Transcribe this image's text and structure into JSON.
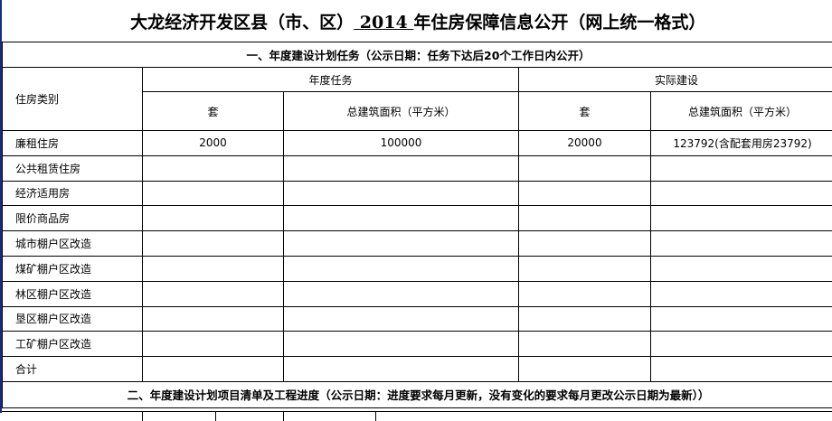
{
  "title": {
    "part1": "大龙经济开发区县（市、区）",
    "year": " 2014 ",
    "part2": "年住房保障信息公开（网上统一格式）"
  },
  "section1": "一、年度建设计划任务（公示日期：任务下达后20个工作日内公开）",
  "headers": {
    "category": "住房类别",
    "annual_task": "年度任务",
    "actual": "实际建设",
    "units": "套",
    "area": "总建筑面积（平方米）"
  },
  "rows": [
    {
      "category": "廉租住房",
      "task_units": "2000",
      "task_area": "100000",
      "actual_units": "20000",
      "actual_area": "123792(含配套用房23792)"
    },
    {
      "category": "公共租赁住房"
    },
    {
      "category": "经济适用房"
    },
    {
      "category": "限价商品房"
    },
    {
      "category": "城市棚户区改造"
    },
    {
      "category": "煤矿棚户区改造"
    },
    {
      "category": "林区棚户区改造"
    },
    {
      "category": "垦区棚户区改造"
    },
    {
      "category": "工矿棚户区改造"
    },
    {
      "category": "合计"
    }
  ],
  "section2": "二、年度建设计划项目清单及工程进度（公示日期：进度要求每月更新，没有变化的要求每月更改公示日期为最新））"
}
